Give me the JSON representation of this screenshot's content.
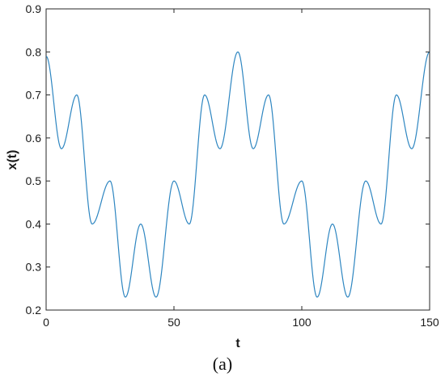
{
  "chart_data": {
    "type": "line",
    "title": "",
    "xlabel": "t",
    "ylabel": "x(t)",
    "xlim": [
      0,
      150
    ],
    "ylim": [
      0.2,
      0.9
    ],
    "xticks": [
      0,
      50,
      100,
      150
    ],
    "yticks": [
      0.2,
      0.3,
      0.4,
      0.5,
      0.6,
      0.7,
      0.8,
      0.9
    ],
    "grid": false,
    "series_color": "#2e86c1",
    "series": [
      {
        "x": [
          0,
          6,
          12,
          18,
          25,
          31,
          37,
          43,
          50,
          56,
          62,
          68,
          75,
          81,
          87,
          93,
          100,
          106,
          112,
          118,
          125,
          131,
          137,
          143,
          150
        ],
        "values": [
          0.79,
          0.575,
          0.7,
          0.4,
          0.5,
          0.23,
          0.4,
          0.23,
          0.5,
          0.4,
          0.7,
          0.575,
          0.8,
          0.575,
          0.7,
          0.4,
          0.5,
          0.23,
          0.4,
          0.23,
          0.5,
          0.4,
          0.7,
          0.575,
          0.8
        ]
      }
    ]
  },
  "caption": "(a)"
}
